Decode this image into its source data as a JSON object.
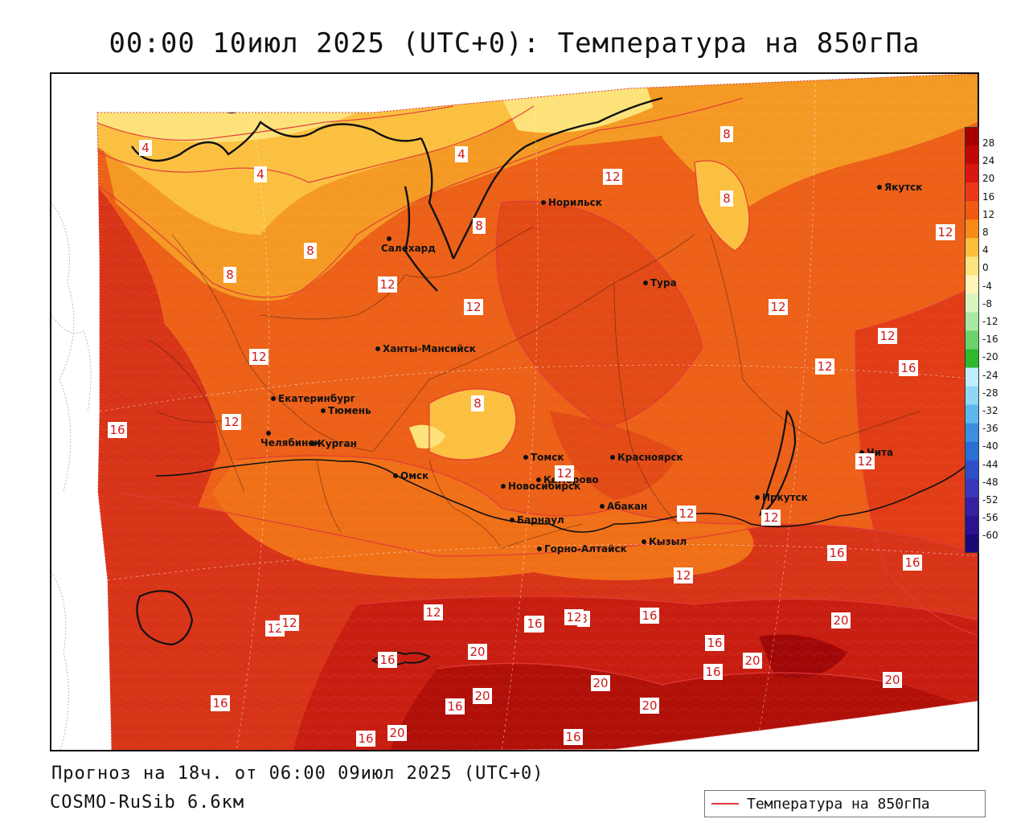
{
  "title": "00:00 10июл 2025 (UTC+0): Температура на 850гПа",
  "forecast_text": "Прогноз на 18ч. от 06:00 09июл 2025 (UTC+0)",
  "model_text": "COSMO-RuSib 6.6км",
  "legend_label": "Температура на 850гПа",
  "colors": {
    "isoline": "#e23a3a",
    "label_text": "#d01818"
  },
  "colorbar_ticks": [
    "28",
    "24",
    "20",
    "16",
    "12",
    "8",
    "4",
    "0",
    "-4",
    "-8",
    "-12",
    "-16",
    "-20",
    "-24",
    "-28",
    "-32",
    "-36",
    "-40",
    "-44",
    "-48",
    "-52",
    "-56",
    "-60"
  ],
  "colorbar_colors": [
    "#a80000",
    "#c00808",
    "#d81810",
    "#e83818",
    "#f05a10",
    "#f78a18",
    "#fbbf3a",
    "#fde480",
    "#fff5b8",
    "#d8f5c0",
    "#a8e8a0",
    "#6cd36c",
    "#2eb82e",
    "#bfeeff",
    "#8ed8f5",
    "#5cb8ee",
    "#3b8fe0",
    "#2a6fd4",
    "#2f4fc8",
    "#3a36b8",
    "#3520a0",
    "#2a1290",
    "#1c0878"
  ],
  "cities": [
    {
      "name": "Якутск"
    },
    {
      "name": "Норильск"
    },
    {
      "name": "Салехард"
    },
    {
      "name": "Тура"
    },
    {
      "name": "Ханты-Мансийск"
    },
    {
      "name": "Екатеринбург"
    },
    {
      "name": "Тюмень"
    },
    {
      "name": "Челябинск"
    },
    {
      "name": "Курган"
    },
    {
      "name": "Омск"
    },
    {
      "name": "Новосибирск"
    },
    {
      "name": "Томск"
    },
    {
      "name": "Кемерово"
    },
    {
      "name": "Красноярск"
    },
    {
      "name": "Абакан"
    },
    {
      "name": "Барнаул"
    },
    {
      "name": "Горно-Алтайск"
    },
    {
      "name": "Кызыл"
    },
    {
      "name": "Иркутск"
    },
    {
      "name": "Чита"
    }
  ],
  "isoline_labels": [
    "4",
    "4",
    "4",
    "8",
    "8",
    "8",
    "8",
    "8",
    "8",
    "8",
    "12",
    "12",
    "12",
    "12",
    "12",
    "12",
    "12",
    "12",
    "12",
    "12",
    "12",
    "12",
    "12",
    "12",
    "12",
    "12",
    "12",
    "12",
    "16",
    "16",
    "16",
    "16",
    "16",
    "16",
    "16",
    "16",
    "16",
    "16",
    "16",
    "16",
    "16",
    "16",
    "20",
    "20",
    "20",
    "20",
    "20",
    "20",
    "20",
    "20"
  ]
}
